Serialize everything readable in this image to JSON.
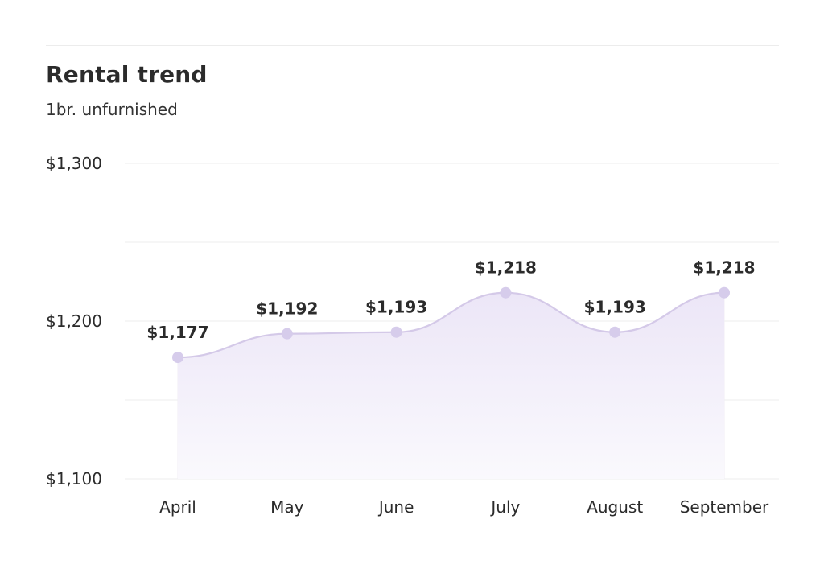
{
  "header": {
    "title": "Rental trend",
    "subtitle": "1br. unfurnished"
  },
  "chart_data": {
    "type": "area",
    "title": "Rental trend",
    "subtitle": "1br. unfurnished",
    "categories": [
      "April",
      "May",
      "June",
      "July",
      "August",
      "September"
    ],
    "series": [
      {
        "values": [
          1177,
          1192,
          1193,
          1218,
          1193,
          1218
        ]
      }
    ],
    "data_labels": [
      "$1,177",
      "$1,192",
      "$1,193",
      "$1,218",
      "$1,193",
      "$1,218"
    ],
    "y_ticks": [
      {
        "value": 1300,
        "label": "$1,300"
      },
      {
        "value": 1200,
        "label": "$1,200"
      },
      {
        "value": 1100,
        "label": "$1,100"
      }
    ],
    "gridlines": [
      1100,
      1150,
      1200,
      1250,
      1300
    ],
    "ylim": [
      1100,
      1300
    ],
    "grid": true,
    "colors": {
      "line": "#d4c9e8",
      "marker": "#d6cceb",
      "fill_top": "#ece6f7",
      "fill_bottom": "#faf9fd",
      "grid": "#ededed"
    }
  }
}
